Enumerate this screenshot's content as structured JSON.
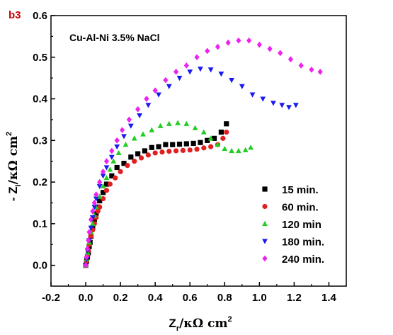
{
  "chart_data": {
    "type": "scatter",
    "panel_label": "b3",
    "annotation": "Cu-Al-Ni  3.5% NaCl",
    "xlabel": {
      "main": "Z",
      "sub": "r",
      "unit": "/κΩ cm",
      "sup": "2"
    },
    "ylabel": {
      "prefix": "- Z",
      "sub": "i",
      "unit": "/κΩ cm",
      "sup": "2"
    },
    "xlim": [
      -0.2,
      1.5
    ],
    "ylim": [
      -0.05,
      0.6
    ],
    "xticks": [
      "-0.2",
      "0.0",
      "0.2",
      "0.4",
      "0.6",
      "0.8",
      "1.0",
      "1.2",
      "1.4"
    ],
    "yticks": [
      "0.0",
      "0.1",
      "0.2",
      "0.3",
      "0.4",
      "0.5",
      "0.6"
    ],
    "legend_position": "bottom-right",
    "series": [
      {
        "name": "15 min.",
        "marker": "square",
        "color": "#000000",
        "x": [
          0.0,
          0.005,
          0.01,
          0.015,
          0.02,
          0.025,
          0.03,
          0.04,
          0.05,
          0.06,
          0.07,
          0.08,
          0.1,
          0.12,
          0.15,
          0.18,
          0.22,
          0.26,
          0.3,
          0.34,
          0.38,
          0.42,
          0.46,
          0.5,
          0.54,
          0.58,
          0.62,
          0.66,
          0.7,
          0.74,
          0.78,
          0.81
        ],
        "y": [
          0.0,
          0.01,
          0.02,
          0.03,
          0.045,
          0.055,
          0.07,
          0.09,
          0.11,
          0.125,
          0.14,
          0.155,
          0.175,
          0.195,
          0.215,
          0.235,
          0.245,
          0.26,
          0.268,
          0.275,
          0.283,
          0.285,
          0.29,
          0.29,
          0.291,
          0.292,
          0.293,
          0.295,
          0.3,
          0.305,
          0.32,
          0.34
        ]
      },
      {
        "name": "60 min.",
        "marker": "circle",
        "color": "#e02020",
        "x": [
          0.0,
          0.005,
          0.01,
          0.015,
          0.02,
          0.03,
          0.04,
          0.05,
          0.06,
          0.07,
          0.08,
          0.1,
          0.12,
          0.14,
          0.17,
          0.2,
          0.24,
          0.28,
          0.32,
          0.36,
          0.4,
          0.44,
          0.48,
          0.52,
          0.56,
          0.6,
          0.64,
          0.68,
          0.72,
          0.76,
          0.79,
          0.81
        ],
        "y": [
          0.0,
          0.01,
          0.025,
          0.035,
          0.05,
          0.07,
          0.085,
          0.1,
          0.115,
          0.13,
          0.14,
          0.16,
          0.18,
          0.195,
          0.21,
          0.225,
          0.24,
          0.25,
          0.258,
          0.265,
          0.27,
          0.272,
          0.274,
          0.275,
          0.276,
          0.277,
          0.279,
          0.282,
          0.285,
          0.29,
          0.305,
          0.32
        ]
      },
      {
        "name": "120 min",
        "marker": "triangle-up",
        "color": "#22cc22",
        "x": [
          0.0,
          0.005,
          0.01,
          0.02,
          0.03,
          0.04,
          0.05,
          0.06,
          0.08,
          0.1,
          0.12,
          0.14,
          0.16,
          0.19,
          0.23,
          0.28,
          0.33,
          0.38,
          0.43,
          0.48,
          0.53,
          0.58,
          0.63,
          0.68,
          0.72,
          0.76,
          0.8,
          0.84,
          0.88,
          0.92,
          0.95
        ],
        "y": [
          0.0,
          0.015,
          0.03,
          0.055,
          0.08,
          0.1,
          0.12,
          0.14,
          0.165,
          0.19,
          0.21,
          0.23,
          0.25,
          0.27,
          0.29,
          0.305,
          0.315,
          0.325,
          0.335,
          0.34,
          0.342,
          0.34,
          0.33,
          0.32,
          0.305,
          0.29,
          0.28,
          0.275,
          0.275,
          0.277,
          0.283
        ]
      },
      {
        "name": "180 min.",
        "marker": "triangle-down",
        "color": "#1a1aee",
        "x": [
          0.0,
          0.005,
          0.01,
          0.02,
          0.03,
          0.04,
          0.05,
          0.06,
          0.08,
          0.1,
          0.12,
          0.15,
          0.18,
          0.22,
          0.26,
          0.31,
          0.36,
          0.42,
          0.48,
          0.54,
          0.6,
          0.66,
          0.72,
          0.78,
          0.84,
          0.9,
          0.96,
          1.02,
          1.08,
          1.13,
          1.17,
          1.21
        ],
        "y": [
          0.0,
          0.015,
          0.035,
          0.06,
          0.09,
          0.115,
          0.14,
          0.16,
          0.19,
          0.215,
          0.235,
          0.26,
          0.285,
          0.31,
          0.335,
          0.36,
          0.385,
          0.41,
          0.43,
          0.45,
          0.465,
          0.472,
          0.47,
          0.46,
          0.445,
          0.43,
          0.41,
          0.4,
          0.39,
          0.385,
          0.38,
          0.385
        ]
      },
      {
        "name": "240 min.",
        "marker": "diamond",
        "color": "#ee22ee",
        "x": [
          0.0,
          0.005,
          0.01,
          0.015,
          0.02,
          0.03,
          0.04,
          0.05,
          0.06,
          0.08,
          0.1,
          0.12,
          0.15,
          0.18,
          0.21,
          0.25,
          0.3,
          0.35,
          0.4,
          0.46,
          0.52,
          0.58,
          0.64,
          0.7,
          0.76,
          0.82,
          0.88,
          0.94,
          1.0,
          1.06,
          1.12,
          1.18,
          1.24,
          1.3,
          1.35
        ],
        "y": [
          0.0,
          0.02,
          0.04,
          0.06,
          0.08,
          0.11,
          0.13,
          0.15,
          0.17,
          0.2,
          0.225,
          0.25,
          0.275,
          0.3,
          0.325,
          0.35,
          0.375,
          0.4,
          0.42,
          0.445,
          0.465,
          0.48,
          0.5,
          0.515,
          0.525,
          0.535,
          0.54,
          0.54,
          0.53,
          0.52,
          0.51,
          0.495,
          0.48,
          0.47,
          0.465
        ]
      }
    ]
  }
}
